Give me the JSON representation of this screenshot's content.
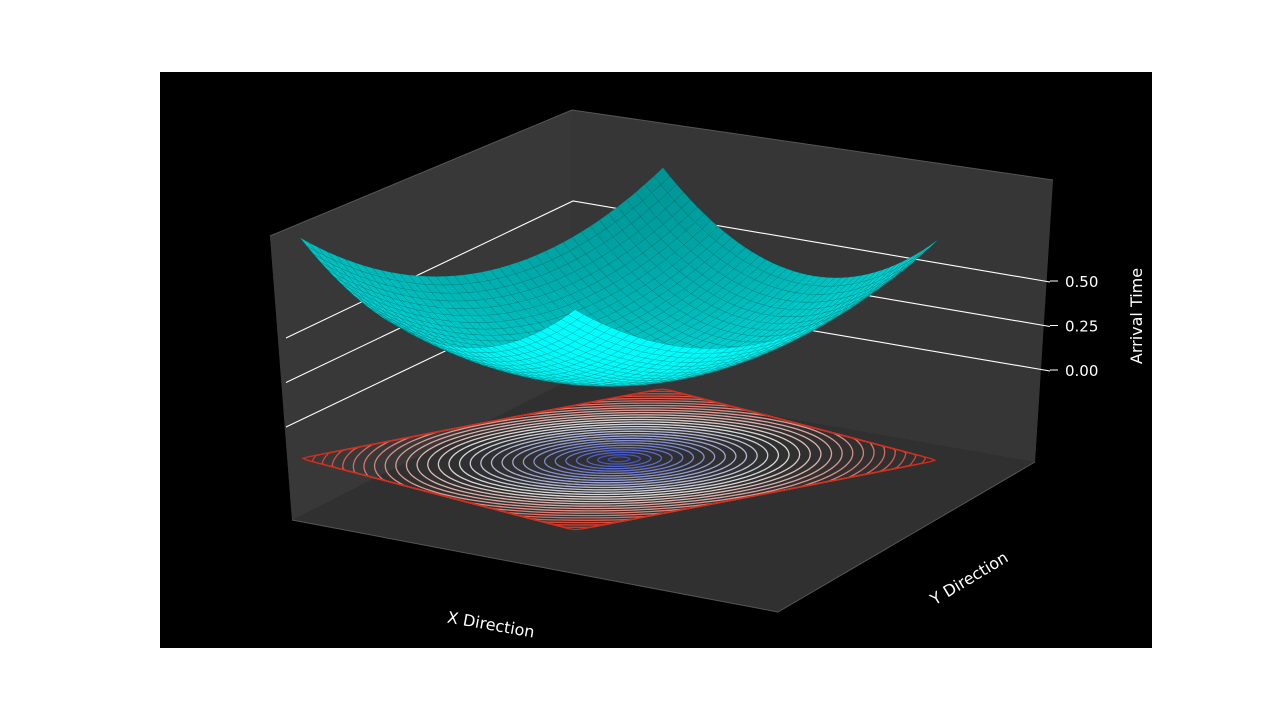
{
  "chart_data": {
    "type": "surface",
    "subtype": "3d-surface-with-floor-contours",
    "title": "",
    "xlabel": "X Direction",
    "ylabel": "Y Direction",
    "zlabel": "Arrival Time",
    "zticks": [
      "0.00",
      "0.25",
      "0.50"
    ],
    "grid": true,
    "background": "#000000",
    "pane_color": "#333333",
    "surface": {
      "function": "arrival time of a radially expanding front (paraboloid)",
      "x_range": [
        -1,
        1
      ],
      "y_range": [
        -1,
        1
      ],
      "z_min": -0.16,
      "z_max_corner": 0.62,
      "color": "#00ffff"
    },
    "contours": {
      "placement": "floor",
      "colormap": "coolwarm",
      "levels": 30,
      "center_color": "#3b4cc0",
      "mid_color": "#dddddd",
      "edge_color": "#d62c1a"
    }
  }
}
